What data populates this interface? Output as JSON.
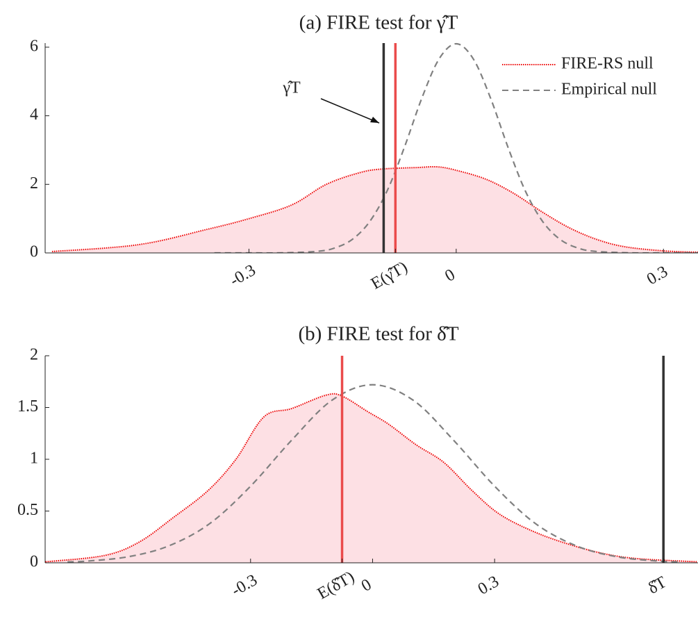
{
  "chart_data": [
    {
      "type": "line",
      "title": "(a) FIRE test for γ̂T",
      "series": [
        {
          "name": "FIRE-RS null",
          "color": "#ee0000",
          "style": "dotted",
          "fill": "#fde0e4",
          "x": [
            -0.585,
            -0.46,
            -0.36,
            -0.3,
            -0.238,
            -0.188,
            -0.138,
            -0.105,
            -0.057,
            -0.027,
            0,
            0.043,
            0.083,
            0.124,
            0.164,
            0.204,
            0.244,
            0.3,
            0.35
          ],
          "values": [
            0.04,
            0.24,
            0.69,
            1.0,
            1.4,
            2.0,
            2.35,
            2.45,
            2.49,
            2.51,
            2.41,
            2.15,
            1.74,
            1.2,
            0.73,
            0.39,
            0.18,
            0.06,
            0.02
          ]
        },
        {
          "name": "Empirical null",
          "color": "#808080",
          "style": "dashed",
          "x": [
            -0.35,
            -0.3,
            -0.25,
            -0.2,
            -0.175,
            -0.15,
            -0.125,
            -0.1,
            -0.075,
            -0.05,
            -0.025,
            0,
            0.025,
            0.05,
            0.075,
            0.1,
            0.125,
            0.15,
            0.175,
            0.2,
            0.25,
            0.3,
            0.35
          ],
          "values": [
            0,
            0,
            0.003,
            0.048,
            0.15,
            0.4,
            0.92,
            1.81,
            3.08,
            4.5,
            5.65,
            6.1,
            5.65,
            4.5,
            3.08,
            1.81,
            0.92,
            0.4,
            0.15,
            0.048,
            0.003,
            0,
            0
          ]
        }
      ],
      "vlines": [
        {
          "x": -0.105,
          "color": "#333333"
        },
        {
          "x": -0.088,
          "color": "#ea4b4b"
        }
      ],
      "annotations": [
        "γ̂T"
      ],
      "xlim": [
        -0.595,
        0.35
      ],
      "xticks": [
        -0.3,
        {
          "value": -0.088,
          "label": "E(γ̂T)"
        },
        0,
        0.3
      ],
      "ylim": [
        0,
        6.12
      ],
      "yticks": [
        0,
        2,
        4,
        6
      ],
      "legend": "upper right"
    },
    {
      "type": "line",
      "title": "(b) FIRE test for δ̂T",
      "series": [
        {
          "color": "#ee0000",
          "style": "dotted",
          "fill": "#fde0e4",
          "x": [
            -0.804,
            -0.66,
            -0.574,
            -0.489,
            -0.404,
            -0.336,
            -0.267,
            -0.199,
            -0.114,
            -0.075,
            -0.012,
            0.039,
            0.107,
            0.175,
            0.244,
            0.312,
            0.397,
            0.482,
            0.567,
            0.652,
            0.797
          ],
          "values": [
            0.01,
            0.07,
            0.2,
            0.44,
            0.7,
            1.0,
            1.41,
            1.49,
            1.62,
            1.61,
            1.46,
            1.34,
            1.14,
            0.97,
            0.7,
            0.47,
            0.3,
            0.18,
            0.09,
            0.04,
            0.01
          ]
        },
        {
          "color": "#808080",
          "style": "dashed",
          "x": [
            -0.75,
            -0.7,
            -0.6,
            -0.5,
            -0.4,
            -0.3,
            -0.2,
            -0.1,
            0,
            0.1,
            0.2,
            0.3,
            0.4,
            0.5,
            0.6,
            0.7,
            0.75
          ],
          "values": [
            0.009,
            0.017,
            0.059,
            0.165,
            0.38,
            0.74,
            1.18,
            1.57,
            1.72,
            1.57,
            1.18,
            0.74,
            0.38,
            0.165,
            0.059,
            0.017,
            0.009
          ]
        }
      ],
      "vlines": [
        {
          "x": -0.075,
          "color": "#ea4b4b"
        },
        {
          "x": 0.715,
          "color": "#333333"
        }
      ],
      "xlim": [
        -0.805,
        0.8
      ],
      "xticks": [
        -0.3,
        {
          "value": -0.075,
          "label": "E(δ̂T)"
        },
        0,
        0.3,
        {
          "value": 0.715,
          "label": "δ̂T"
        }
      ],
      "ylim": [
        0,
        2
      ],
      "yticks": [
        0,
        0.5,
        1,
        1.5,
        2
      ]
    }
  ]
}
